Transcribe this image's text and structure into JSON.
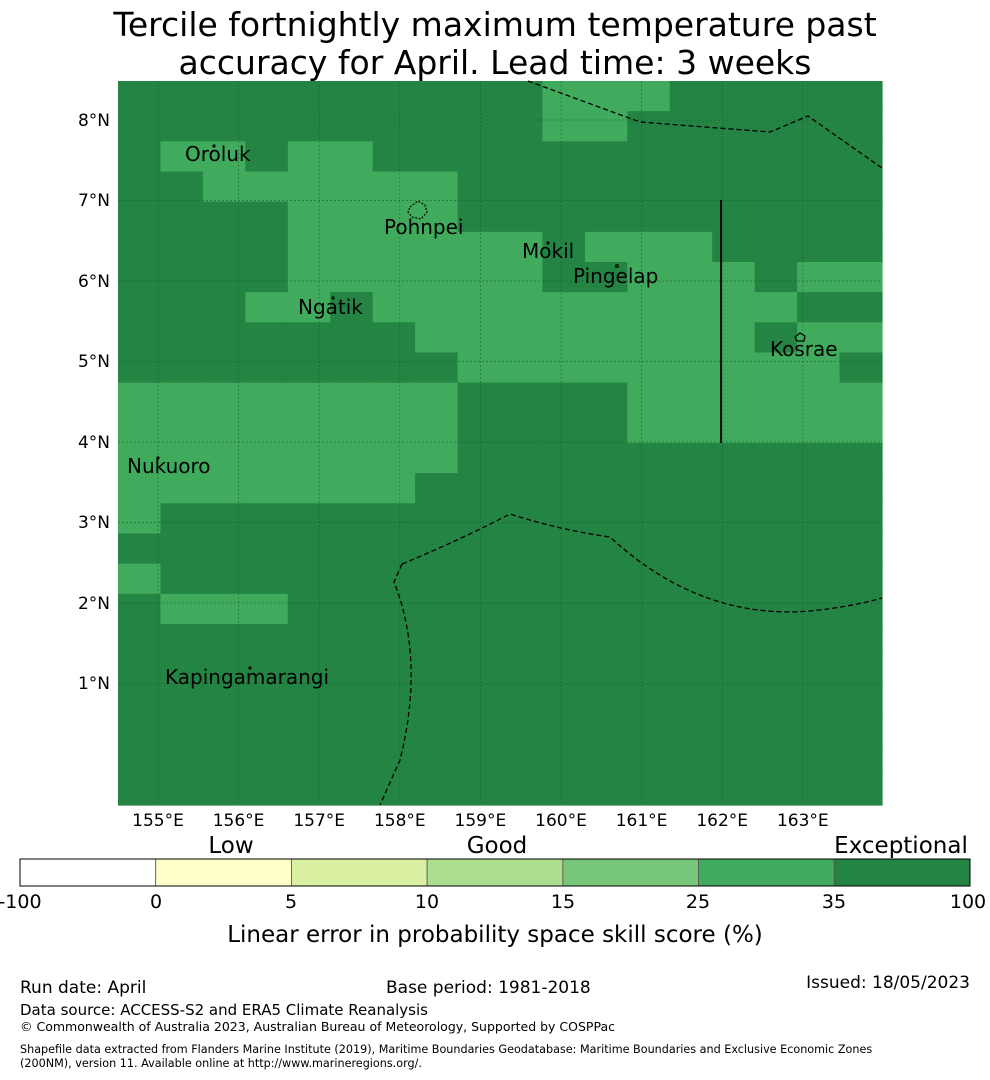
{
  "title": {
    "line1": "Tercile fortnightly maximum temperature past",
    "line2": "accuracy for April. Lead time: 3 weeks"
  },
  "map": {
    "lat_labels": [
      "8°N",
      "7°N",
      "6°N",
      "5°N",
      "4°N",
      "3°N",
      "2°N",
      "1°N"
    ],
    "lon_labels": [
      "155°E",
      "156°E",
      "157°E",
      "158°E",
      "159°E",
      "160°E",
      "161°E",
      "162°E",
      "163°E"
    ],
    "places": [
      "Oroluk",
      "Pohnpei",
      "Mokil",
      "Pingelap",
      "Ngatik",
      "Kosrae",
      "Nukuoro",
      "Kapingamarangi"
    ],
    "grid": [
      "DDDDDDDDDDMMMDDDDD",
      "DDDDDDDDDDMMDDDDDD",
      "DMMDMMDDDDDDDDDDDD",
      "DDMMMMMMDDDDDDDDDD",
      "DDDDMMMMDDDDDDDDDD",
      "DDDDMMMMMMDMMMDDDD",
      "DDDDMMMMMMDDMMMDMM",
      "DDDMMDMMMMMMMMMMDD",
      "DDDDDDDMMMMMMMMDMM",
      "DDDDDDDDMMMMMMMMMD",
      "MMMMMMMMDDDDMMMMMM",
      "MMMMMMMMDDDDMMMMMM",
      "MMMMMMMMDDDDDDDDDD",
      "MMMMMMMDDDDDDDDDDD",
      "MDDDDDDDDDDDDDDDDD",
      "DDDDDDDDDDDDDDDDDD",
      "MDDDDDDDDDDDDDDDDD",
      "DMMMDDDDDDDDDDDDDD",
      "DDDDDDDDDDDDDDDDDD",
      "DDDDDDDDDDDDDDDDDD",
      "DDDDDDDDDDDDDDDDDD",
      "DDDDDDDDDDDDDDDDDD",
      "DDDDDDDDDDDDDDDDDD",
      "DDDDDDDDDDDDDDDDDD"
    ],
    "colors": {
      "M": "#41ab5d",
      "D": "#238443"
    }
  },
  "colorbar": {
    "category_labels": [
      "Low",
      "Good",
      "Exceptional"
    ],
    "tick_labels": [
      "-100",
      "0",
      "5",
      "10",
      "15",
      "25",
      "35",
      "100"
    ],
    "colors": [
      "#ffffff",
      "#ffffcc",
      "#d9f0a3",
      "#addd8e",
      "#78c679",
      "#41ab5d",
      "#238443"
    ],
    "label": "Linear error in probability space skill score (%)"
  },
  "footer": {
    "run_date": "Run date: April",
    "base_period": "Base period: 1981-2018",
    "issued": "Issued: 18/05/2023",
    "data_source": "Data source: ACCESS-S2 and ERA5 Climate Reanalysis",
    "copyright": "© Commonwealth of Australia 2023, Australian Bureau of Meteorology, Supported by COSPPac",
    "shapefile_line1": "Shapefile data extracted from Flanders Marine Institute (2019), Maritime Boundaries Geodatabase: Maritime Boundaries and Exclusive Economic Zones",
    "shapefile_line2": "(200NM), version 11. Available online at http://www.marineregions.org/."
  }
}
